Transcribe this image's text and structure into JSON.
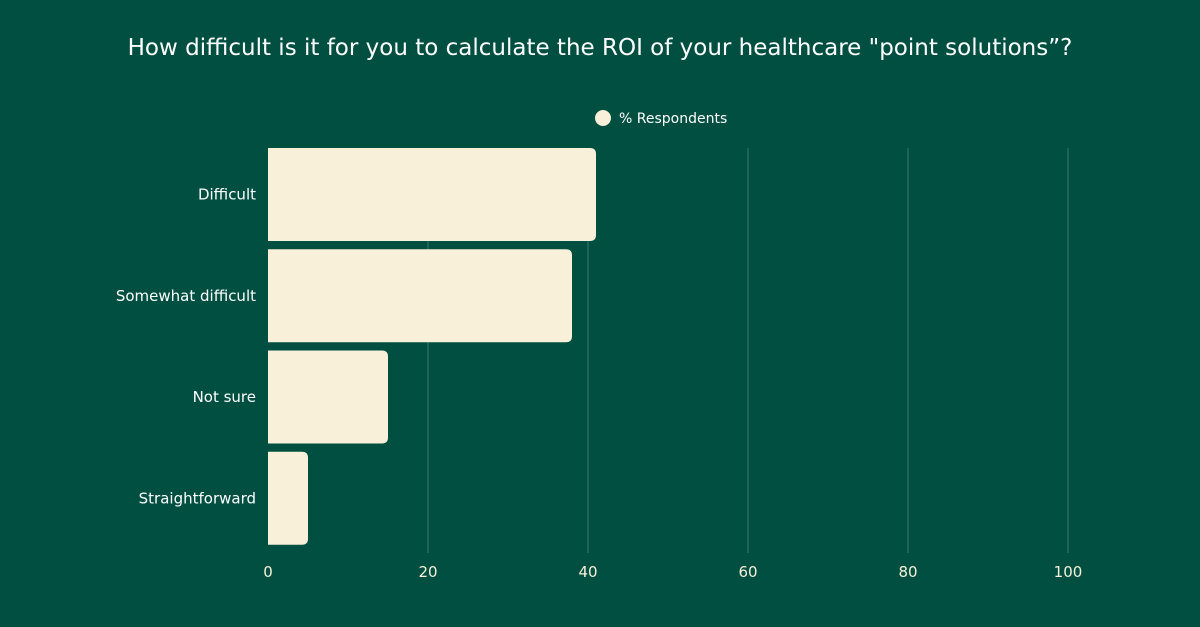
{
  "chart_data": {
    "type": "bar",
    "orientation": "horizontal",
    "title": "How difficult is it for you to calculate the ROI of your healthcare \"point solutions”?",
    "legend": {
      "label": "% Respondents",
      "placement": "top-center"
    },
    "categories": [
      "Difficult",
      "Somewhat difficult",
      "Not sure",
      "Straightforward"
    ],
    "series": [
      {
        "name": "% Respondents",
        "values": [
          41,
          38,
          15,
          5
        ]
      }
    ],
    "xlim": [
      0,
      100
    ],
    "xticks": [
      "0",
      "20",
      "40",
      "60",
      "80",
      "100"
    ],
    "xlabel": "",
    "ylabel": "",
    "grid": "vertical",
    "colors": {
      "background": "#004f40",
      "bar": "#f8f0d9",
      "text": "#ffffff",
      "tick_text": "#f8f0d9",
      "grid": "#3c7a6b"
    }
  }
}
